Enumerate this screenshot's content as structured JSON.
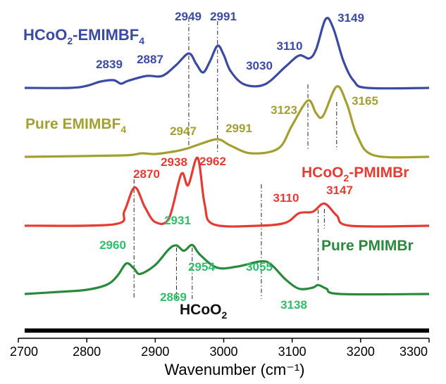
{
  "chart_data": {
    "type": "line",
    "xlabel": "Wavenumber (cm⁻¹)",
    "xlim": [
      2700,
      3300
    ],
    "x_ticks": [
      "2700",
      "2800",
      "2900",
      "3000",
      "3100",
      "3200",
      "3300"
    ],
    "yaxis_hidden": true,
    "series": [
      {
        "name": "HCoO2-EMIMBF4",
        "name_main": "HCoO",
        "name_sub": "2",
        "name_tail": "-EMIMBF",
        "name_sub2": "4",
        "color": "#3b4aa3",
        "x": [
          2700,
          2775,
          2800,
          2820,
          2839,
          2850,
          2860,
          2887,
          2910,
          2930,
          2949,
          2960,
          2970,
          2980,
          2991,
          3000,
          3010,
          3030,
          3060,
          3090,
          3110,
          3125,
          3135,
          3149,
          3160,
          3175,
          3190,
          3210,
          3300
        ],
        "y": [
          0.0,
          0.0,
          0.03,
          0.09,
          0.11,
          0.06,
          0.1,
          0.17,
          0.17,
          0.32,
          0.49,
          0.34,
          0.22,
          0.38,
          0.6,
          0.47,
          0.24,
          0.05,
          0.05,
          0.3,
          0.46,
          0.42,
          0.55,
          0.98,
          0.85,
          0.38,
          0.1,
          0.0,
          0.0
        ],
        "peaks": [
          2839,
          2887,
          2949,
          2991,
          3030,
          3110,
          3149
        ]
      },
      {
        "name": "Pure EMIMBF4",
        "name_main": "Pure EMIMBF",
        "name_sub": "4",
        "color": "#a3a032",
        "x": [
          2700,
          2850,
          2880,
          2900,
          2930,
          2947,
          2965,
          2991,
          3010,
          3040,
          3080,
          3100,
          3123,
          3135,
          3145,
          3165,
          3180,
          3195,
          3220,
          3300
        ],
        "y": [
          0.0,
          0.02,
          0.05,
          0.04,
          0.08,
          0.12,
          0.18,
          0.25,
          0.16,
          0.05,
          0.12,
          0.45,
          0.8,
          0.62,
          0.58,
          1.0,
          0.75,
          0.3,
          0.02,
          0.0
        ],
        "peaks": [
          2947,
          2991,
          3123,
          3165
        ]
      },
      {
        "name": "HCoO2-PMIMBr",
        "name_main": "HCoO",
        "name_sub": "2",
        "name_tail": "-PMIMBr",
        "color": "#e53b32",
        "x": [
          2700,
          2840,
          2855,
          2870,
          2885,
          2900,
          2920,
          2938,
          2948,
          2962,
          2972,
          2985,
          3050,
          3090,
          3110,
          3130,
          3147,
          3165,
          3185,
          3300
        ],
        "y": [
          0.0,
          0.02,
          0.2,
          0.52,
          0.25,
          0.05,
          0.1,
          0.7,
          0.55,
          0.92,
          0.3,
          0.02,
          0.0,
          0.04,
          0.17,
          0.19,
          0.3,
          0.14,
          0.0,
          0.0
        ],
        "peaks": [
          2870,
          2938,
          2962,
          3110,
          3147
        ]
      },
      {
        "name": "Pure PMIMBr",
        "name_main": "Pure PMIMBr",
        "color": "#2a8a3c",
        "x": [
          2700,
          2760,
          2800,
          2830,
          2845,
          2858,
          2869,
          2878,
          2900,
          2920,
          2931,
          2942,
          2954,
          2965,
          2990,
          3020,
          3055,
          3070,
          3090,
          3110,
          3130,
          3138,
          3150,
          3170,
          3300
        ],
        "y": [
          0.0,
          0.04,
          0.08,
          0.18,
          0.35,
          0.58,
          0.48,
          0.38,
          0.55,
          0.85,
          0.92,
          0.82,
          0.93,
          0.75,
          0.5,
          0.52,
          0.62,
          0.55,
          0.28,
          0.1,
          0.12,
          0.17,
          0.1,
          0.0,
          0.0
        ],
        "peaks": [
          2869,
          2931,
          2954,
          2960,
          3055,
          3138
        ]
      }
    ],
    "reference_label_main": "HCoO",
    "reference_label_sub": "2",
    "dash_dot_lines": [
      2869,
      2931,
      2954,
      3055,
      3123,
      3138,
      3147,
      3165,
      2949,
      2991
    ]
  },
  "peak_labels": {
    "blue": [
      "2839",
      "2887",
      "2949",
      "2991",
      "3030",
      "3110",
      "3149"
    ],
    "olive": [
      "2947",
      "2991",
      "3123",
      "3165"
    ],
    "red": [
      "2870",
      "2938",
      "2962",
      "3110",
      "3147"
    ],
    "green": [
      "2960",
      "2931",
      "2954",
      "3055",
      "2869",
      "3138"
    ]
  }
}
